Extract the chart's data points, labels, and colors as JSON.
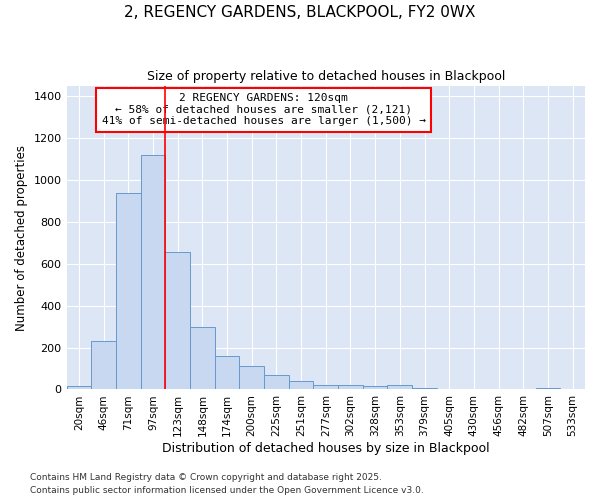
{
  "title": "2, REGENCY GARDENS, BLACKPOOL, FY2 0WX",
  "subtitle": "Size of property relative to detached houses in Blackpool",
  "xlabel": "Distribution of detached houses by size in Blackpool",
  "ylabel": "Number of detached properties",
  "bar_color": "#c8d8f0",
  "bar_edge_color": "#6699cc",
  "bg_color": "#e8eef8",
  "plot_bg_color": "#dce6f5",
  "grid_color": "#ffffff",
  "fig_bg_color": "#ffffff",
  "categories": [
    "20sqm",
    "46sqm",
    "71sqm",
    "97sqm",
    "123sqm",
    "148sqm",
    "174sqm",
    "200sqm",
    "225sqm",
    "251sqm",
    "277sqm",
    "302sqm",
    "328sqm",
    "353sqm",
    "379sqm",
    "405sqm",
    "430sqm",
    "456sqm",
    "482sqm",
    "507sqm",
    "533sqm"
  ],
  "bar_heights": [
    15,
    230,
    935,
    1120,
    655,
    300,
    160,
    110,
    70,
    40,
    20,
    20,
    15,
    20,
    5,
    0,
    0,
    0,
    0,
    5,
    0
  ],
  "property_label": "2 REGENCY GARDENS: 120sqm",
  "annotation_line1": "← 58% of detached houses are smaller (2,121)",
  "annotation_line2": "41% of semi-detached houses are larger (1,500) →",
  "vline_x_index": 4,
  "ylim": [
    0,
    1450
  ],
  "yticks": [
    0,
    200,
    400,
    600,
    800,
    1000,
    1200,
    1400
  ],
  "footnote1": "Contains HM Land Registry data © Crown copyright and database right 2025.",
  "footnote2": "Contains public sector information licensed under the Open Government Licence v3.0."
}
